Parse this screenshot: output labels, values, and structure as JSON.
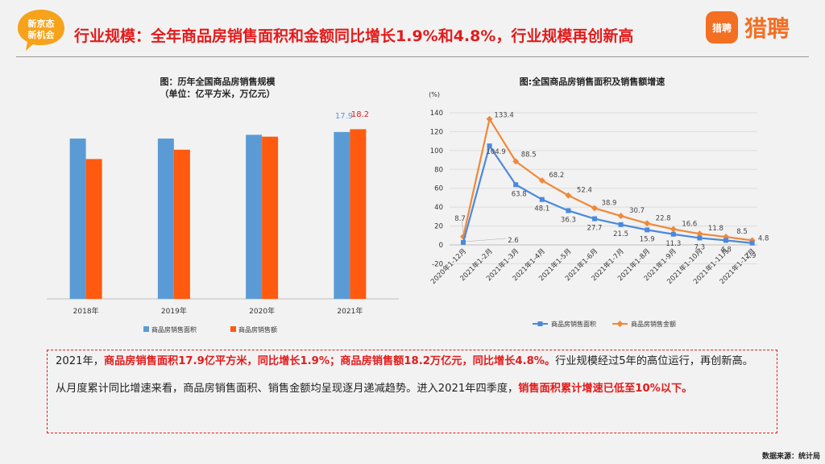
{
  "header": {
    "badge_line1": "新京态",
    "badge_line2": "新机会",
    "title": "行业规模：全年商品房销售面积和金额同比增长1.9%和4.8%，行业规模再创新高",
    "logo_mark": "猎聘",
    "logo_text": "猎聘"
  },
  "colors": {
    "area": "#5b9bd5",
    "amount": "#ff5a0f",
    "accent": "#e31b1b",
    "line_area": "#4a89dc",
    "line_amount": "#f0883a"
  },
  "chart_data": [
    {
      "type": "bar",
      "title_line1": "图：历年全国商品房销售规模",
      "title_line2": "（单位：亿平方米，万亿元）",
      "categories": [
        "2018年",
        "2019年",
        "2020年",
        "2021年"
      ],
      "series": [
        {
          "name": "商品房销售面积",
          "values": [
            17.2,
            17.2,
            17.6,
            17.9
          ]
        },
        {
          "name": "商品房销售额",
          "values": [
            15.0,
            16.0,
            17.4,
            18.2
          ]
        }
      ],
      "data_labels": {
        "area_2021": "17.9",
        "amount_2021": "18.2"
      },
      "ylim": [
        0,
        21
      ],
      "legend": "bottom"
    },
    {
      "type": "line",
      "title": "图:全国商品房销售面积及销售额增速",
      "unit": "(%)",
      "categories": [
        "2020年1-12月",
        "2021年1-2月",
        "2021年1-3月",
        "2021年1-4月",
        "2021年1-5月",
        "2021年1-6月",
        "2021年1-7月",
        "2021年1-8月",
        "2021年1-9月",
        "2021年1-10月",
        "2021年1-11月",
        "2021年1-12月"
      ],
      "series": [
        {
          "name": "商品房销售面积",
          "values": [
            2.6,
            104.9,
            63.8,
            48.1,
            36.3,
            27.7,
            21.5,
            15.9,
            11.3,
            7.3,
            4.8,
            1.9
          ],
          "labels": [
            "2.6",
            "104.9",
            "63.8",
            "48.1",
            "36.3",
            "27.7",
            "21.5",
            "15.9",
            "11.3",
            "7.3",
            "4.8",
            "1.9"
          ]
        },
        {
          "name": "商品房销售金额",
          "values": [
            8.7,
            133.4,
            88.5,
            68.2,
            52.4,
            38.9,
            30.7,
            22.8,
            16.6,
            11.8,
            8.5,
            4.8
          ],
          "labels": [
            "8.7",
            "133.4",
            "88.5",
            "68.2",
            "52.4",
            "38.9",
            "30.7",
            "22.8",
            "16.6",
            "11.8",
            "8.5",
            "4.8"
          ]
        }
      ],
      "yticks": [
        "-20",
        "0",
        "20",
        "40",
        "60",
        "80",
        "100",
        "120",
        "140"
      ],
      "ylim": [
        -20,
        140
      ],
      "legend": "bottom"
    }
  ],
  "summary": {
    "p1_a": "2021年，",
    "p1_b": "商品房销售面积17.9亿平方米，同比增长1.9%；商品房销售额18.2万亿元，同比增长4.8%。",
    "p1_c": "行业规模经过5年的高位运行，再创新高。",
    "p2_a": "从月度累计同比增速来看，商品房销售面积、销售金额均呈现逐月递减趋势。进入2021年四季度，",
    "p2_b": "销售面积累计增速已低至10%以下。"
  },
  "source": "数据来源：统计局"
}
